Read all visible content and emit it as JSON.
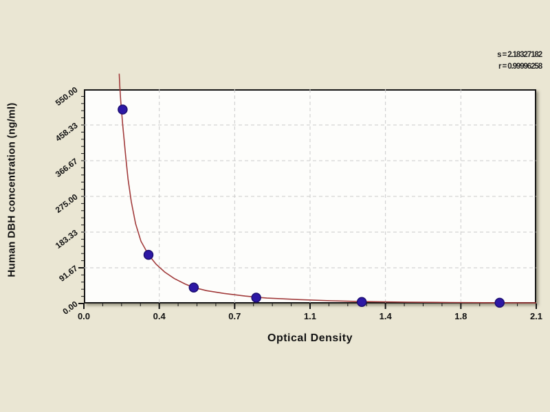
{
  "background_color": "#eae6d3",
  "stats": {
    "s_label": "s = 2.18327182",
    "r_label": "r = 0.99996258"
  },
  "chart_data": {
    "type": "scatter",
    "title": "",
    "xlabel": "Optical Density",
    "ylabel": "Human DBH concentration (ng/ml)",
    "xlim": [
      0,
      2.1
    ],
    "ylim": [
      0,
      550
    ],
    "grid": "dashed interior gridlines at every major tick",
    "legend": "none",
    "x_tick_values": [
      0,
      0.35,
      0.7,
      1.05,
      1.4,
      1.75,
      2.1
    ],
    "x_tick_labels": [
      "0.0",
      "0.4",
      "0.7",
      "1.1",
      "1.4",
      "1.8",
      "2.1"
    ],
    "x_minor_ticks_per_interval": 3,
    "y_tick_values": [
      0,
      91.67,
      183.33,
      275,
      366.67,
      458.33,
      550
    ],
    "y_tick_labels": [
      "0.00",
      "91.67",
      "183.33",
      "275.00",
      "366.67",
      "458.33",
      "550.00"
    ],
    "y_minor_ticks_per_interval": 4,
    "points": {
      "x": [
        0.18,
        0.3,
        0.51,
        0.8,
        1.29,
        1.93
      ],
      "y": [
        498,
        125,
        41,
        15,
        4,
        2
      ]
    },
    "curve": [
      [
        0.164,
        590
      ],
      [
        0.167,
        556
      ],
      [
        0.171,
        520
      ],
      [
        0.176,
        488
      ],
      [
        0.18,
        460
      ],
      [
        0.186,
        425
      ],
      [
        0.194,
        378
      ],
      [
        0.205,
        320
      ],
      [
        0.22,
        262
      ],
      [
        0.24,
        205
      ],
      [
        0.265,
        160
      ],
      [
        0.3,
        125
      ],
      [
        0.335,
        101
      ],
      [
        0.375,
        81
      ],
      [
        0.42,
        64
      ],
      [
        0.47,
        50
      ],
      [
        0.51,
        41
      ],
      [
        0.57,
        33
      ],
      [
        0.65,
        26
      ],
      [
        0.75,
        19
      ],
      [
        0.85,
        14
      ],
      [
        1.0,
        10
      ],
      [
        1.15,
        7
      ],
      [
        1.3,
        5
      ],
      [
        1.5,
        3.5
      ],
      [
        1.7,
        2.6
      ],
      [
        1.93,
        2
      ],
      [
        2.1,
        1.6
      ]
    ],
    "colors": {
      "curve": "#a13a3a",
      "point_fill": "#2d18a5",
      "point_stroke": "#1c0e70",
      "gridline": "#c9c9c9",
      "axis": "#151515"
    }
  }
}
